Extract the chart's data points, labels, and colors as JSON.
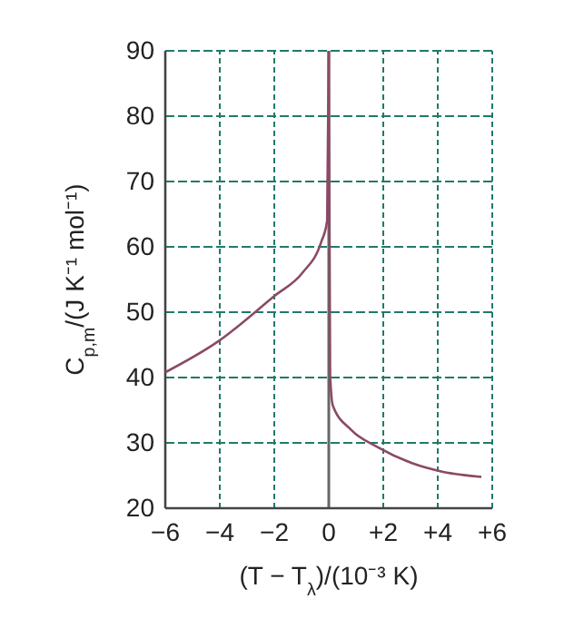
{
  "chart_data": {
    "type": "line",
    "xlabel": "(T − T$_{λ}$)/(10⁻³ K)",
    "ylabel": "C$_{p,m}$/(J K⁻¹ mol⁻¹)",
    "xlim": [
      -6,
      6
    ],
    "ylim": [
      20,
      90
    ],
    "xticks": [
      {
        "value": -6,
        "label": "−6"
      },
      {
        "value": -4,
        "label": "−4"
      },
      {
        "value": -2,
        "label": "−2"
      },
      0,
      {
        "value": 2,
        "label": "+2"
      },
      {
        "value": 4,
        "label": "+4"
      },
      {
        "value": 6,
        "label": "+6"
      }
    ],
    "yticks": [
      20,
      30,
      40,
      50,
      60,
      70,
      80,
      90
    ],
    "series": [
      {
        "color": "#8b4a66",
        "x": [
          -6,
          -4.07,
          -2.02,
          -0.95,
          -0.28,
          -0.06,
          0
        ],
        "values": [
          40.8,
          45.5,
          52.4,
          56.1,
          60.7,
          64,
          90
        ]
      },
      {
        "color": "#8b4a66",
        "x": [
          0,
          0.05,
          0.15,
          0.82,
          1.82,
          3.05,
          4.16,
          5.6
        ],
        "values": [
          90,
          40.4,
          35.7,
          32,
          29.3,
          26.9,
          25.6,
          24.8
        ]
      }
    ],
    "ref_lines": [
      {
        "axis": "x",
        "value": 0,
        "color": "#666666"
      }
    ],
    "grid": true,
    "line_style": "solid",
    "marker": "none"
  }
}
